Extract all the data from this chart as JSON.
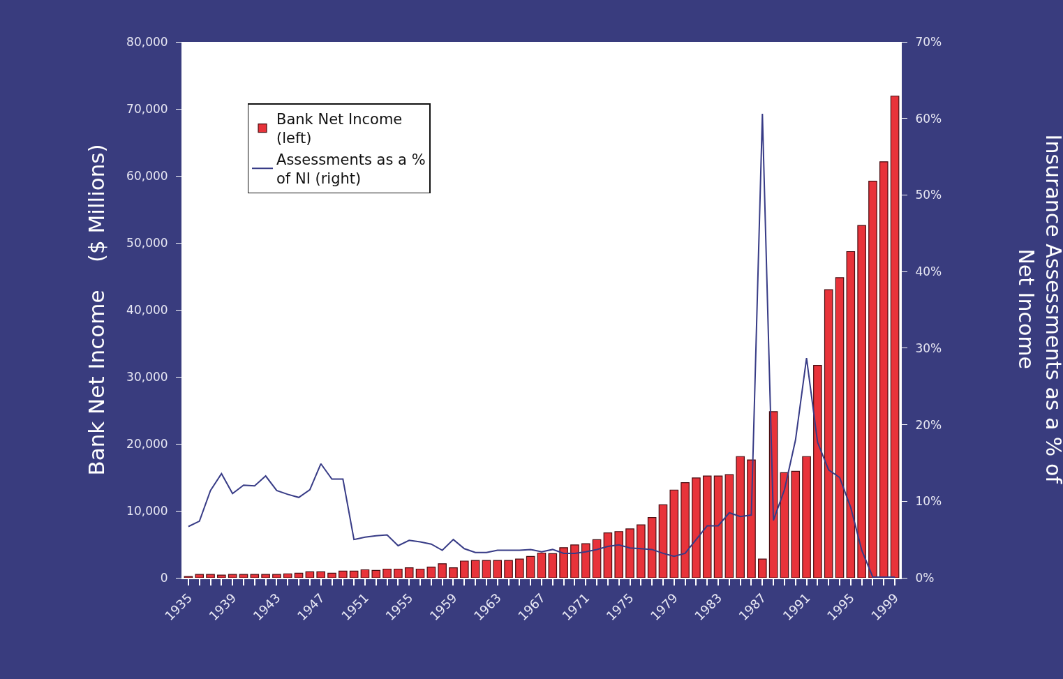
{
  "chart_data": {
    "type": "bar",
    "categories": [
      "1935",
      null,
      null,
      null,
      "1939",
      null,
      null,
      null,
      "1943",
      null,
      null,
      null,
      "1947",
      null,
      null,
      null,
      "1951",
      null,
      null,
      null,
      "1955",
      null,
      null,
      null,
      "1959",
      null,
      null,
      null,
      "1963",
      null,
      null,
      null,
      "1967",
      null,
      null,
      null,
      "1971",
      null,
      null,
      null,
      "1975",
      null,
      null,
      null,
      "1979",
      null,
      null,
      null,
      "1983",
      null,
      null,
      null,
      "1987",
      null,
      null,
      null,
      "1991",
      null,
      null,
      null,
      "1995",
      null,
      null,
      null,
      "1999"
    ],
    "series": [
      {
        "name": "Bank Net Income (left)",
        "color": "#e8333a",
        "values": [
          200,
          500,
          500,
          400,
          500,
          500,
          500,
          500,
          500,
          600,
          700,
          900,
          900,
          700,
          1000,
          1000,
          1200,
          1100,
          1300,
          1300,
          1500,
          1300,
          1600,
          2100,
          1500,
          2500,
          2600,
          2600,
          2600,
          2600,
          2800,
          3200,
          3700,
          3600,
          4500,
          4900,
          5100,
          5700,
          6700,
          6900,
          7300,
          7900,
          9000,
          10900,
          13100,
          14200,
          14900,
          15200,
          15200,
          15400,
          18100,
          17600,
          2800,
          24800,
          15700,
          15900,
          18100,
          31700,
          43000,
          44800,
          48700,
          52600,
          59200,
          62100,
          71900
        ]
      },
      {
        "name": "Assessments as a % of NI (right)",
        "type": "line",
        "axis": "y2",
        "color": "#373b86",
        "values": [
          6.7,
          7.4,
          11.4,
          13.6,
          11.0,
          12.1,
          12.0,
          13.3,
          11.4,
          10.9,
          10.5,
          11.5,
          14.9,
          12.9,
          12.9,
          5.0,
          5.3,
          5.5,
          5.6,
          4.2,
          4.9,
          4.7,
          4.4,
          3.6,
          5.0,
          3.8,
          3.3,
          3.3,
          3.6,
          3.6,
          3.6,
          3.7,
          3.4,
          3.7,
          3.2,
          3.2,
          3.4,
          3.7,
          4.1,
          4.3,
          3.9,
          3.8,
          3.7,
          3.2,
          2.8,
          3.2,
          5.0,
          6.8,
          6.8,
          8.5,
          8.0,
          8.2,
          60.6,
          7.5,
          11.5,
          18.0,
          28.7,
          17.7,
          14.1,
          13.1,
          9.2,
          3.6,
          0.1,
          0.1,
          0.1
        ]
      }
    ],
    "ylabel": "Bank Net Income    ($ Millions)",
    "y2label": "Insurance Assessments as a % of Net Income",
    "ylim": [
      0,
      80000
    ],
    "yticks": [
      {
        "value": 0,
        "label": "0"
      },
      {
        "value": 10000,
        "label": "10,000"
      },
      {
        "value": 20000,
        "label": "20,000"
      },
      {
        "value": 30000,
        "label": "30,000"
      },
      {
        "value": 40000,
        "label": "40,000"
      },
      {
        "value": 50000,
        "label": "50,000"
      },
      {
        "value": 60000,
        "label": "60,000"
      },
      {
        "value": 70000,
        "label": "70,000"
      },
      {
        "value": 80000,
        "label": "80,000"
      }
    ],
    "y2lim": [
      0,
      70
    ],
    "y2ticks": [
      {
        "value": 0,
        "label": "0%"
      },
      {
        "value": 10,
        "label": "10%"
      },
      {
        "value": 20,
        "label": "20%"
      },
      {
        "value": 30,
        "label": "30%"
      },
      {
        "value": 40,
        "label": "40%"
      },
      {
        "value": 50,
        "label": "50%"
      },
      {
        "value": 60,
        "label": "60%"
      },
      {
        "value": 70,
        "label": "70%"
      }
    ],
    "legend": "top left",
    "grid": false,
    "marker": "none",
    "line_style": "solid"
  }
}
